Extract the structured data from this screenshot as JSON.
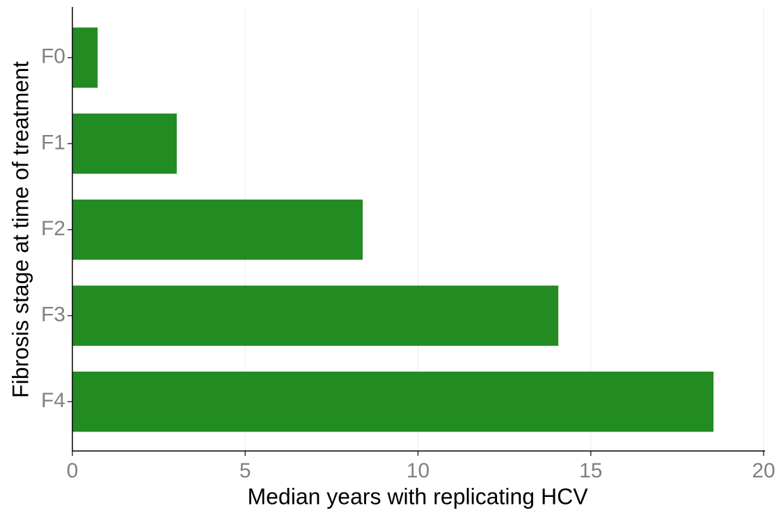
{
  "chart_data": {
    "type": "bar",
    "orientation": "horizontal",
    "xlabel": "Median years with replicating HCV",
    "ylabel": "Fibrosis stage at time of treatment",
    "categories": [
      "F0",
      "F1",
      "F2",
      "F3",
      "F4"
    ],
    "values": [
      0.73,
      3.02,
      8.4,
      14.06,
      18.55
    ],
    "color": "#228b22",
    "xlim": [
      0,
      20
    ],
    "xticks": [
      0,
      5,
      10,
      15,
      20
    ],
    "grid": true
  }
}
